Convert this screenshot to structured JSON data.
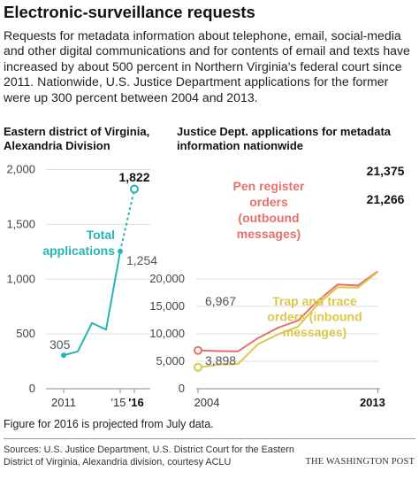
{
  "title": "Electronic-surveillance requests",
  "dek": "Requests for metadata information about telephone, email, social-media and other digital communications and for contents of email and texts have increased by about 500 percent in Northern Virginia's federal court since 2011. Nationwide, U.S. Justice Department applications for the former were up 300 percent between 2004 and 2013.",
  "note": "Figure for 2016 is projected from July data.",
  "sources": "Sources: U.S. Justice Department, U.S. District Court for the Eastern District of Virginia, Alexandria division, courtesy ACLU",
  "credit": "THE WASHINGTON POST",
  "colors": {
    "teal": "#26b5b5",
    "red": "#e8706a",
    "yellow": "#dcc848",
    "axis": "#888888",
    "grid": "#dddddd"
  },
  "chart_data": [
    {
      "type": "line",
      "title": "Eastern district of Virginia, Alexandria Division",
      "x": [
        2011,
        2012,
        2013,
        2014,
        2015,
        2016
      ],
      "x_tick_labels": [
        "2011",
        "'15",
        "'16"
      ],
      "ylim": [
        0,
        2000
      ],
      "yticks": [
        0,
        500,
        1000,
        1500,
        2000
      ],
      "ytick_labels": [
        "0",
        "500",
        "1,000",
        "1,500",
        "2,000"
      ],
      "grid": true,
      "series": [
        {
          "name": "Total applications",
          "values": [
            305,
            340,
            600,
            540,
            1254,
            1822
          ],
          "projected_last": true
        }
      ],
      "annotations": [
        "305",
        "1,254",
        "1,822"
      ]
    },
    {
      "type": "line",
      "title": "Justice Dept. applications for metadata information nationwide",
      "x": [
        2004,
        2005,
        2006,
        2007,
        2008,
        2009,
        2010,
        2011,
        2012,
        2013
      ],
      "x_tick_labels": [
        "2004",
        "2013"
      ],
      "ylim": [
        0,
        20000
      ],
      "yticks": [
        0,
        5000,
        10000,
        15000,
        20000
      ],
      "ytick_labels": [
        "0",
        "5,000",
        "10,000",
        "15,000",
        "20,000"
      ],
      "grid": true,
      "series": [
        {
          "name": "Pen register orders (outbound messages)",
          "values": [
            6967,
            6850,
            6800,
            9200,
            11100,
            12400,
            16000,
            19000,
            18800,
            21375
          ]
        },
        {
          "name": "Trap and trace orders (inbound messages)",
          "values": [
            3898,
            4400,
            4500,
            8100,
            9900,
            11300,
            15400,
            18500,
            18400,
            21266
          ]
        }
      ],
      "series_label_lines": [
        [
          "Pen register",
          "orders",
          "(outbound",
          "messages)"
        ],
        [
          "Trap and trace",
          "orders (inbound",
          "messages)"
        ]
      ],
      "annotations": [
        "6,967",
        "3,898",
        "21,375",
        "21,266"
      ]
    }
  ]
}
